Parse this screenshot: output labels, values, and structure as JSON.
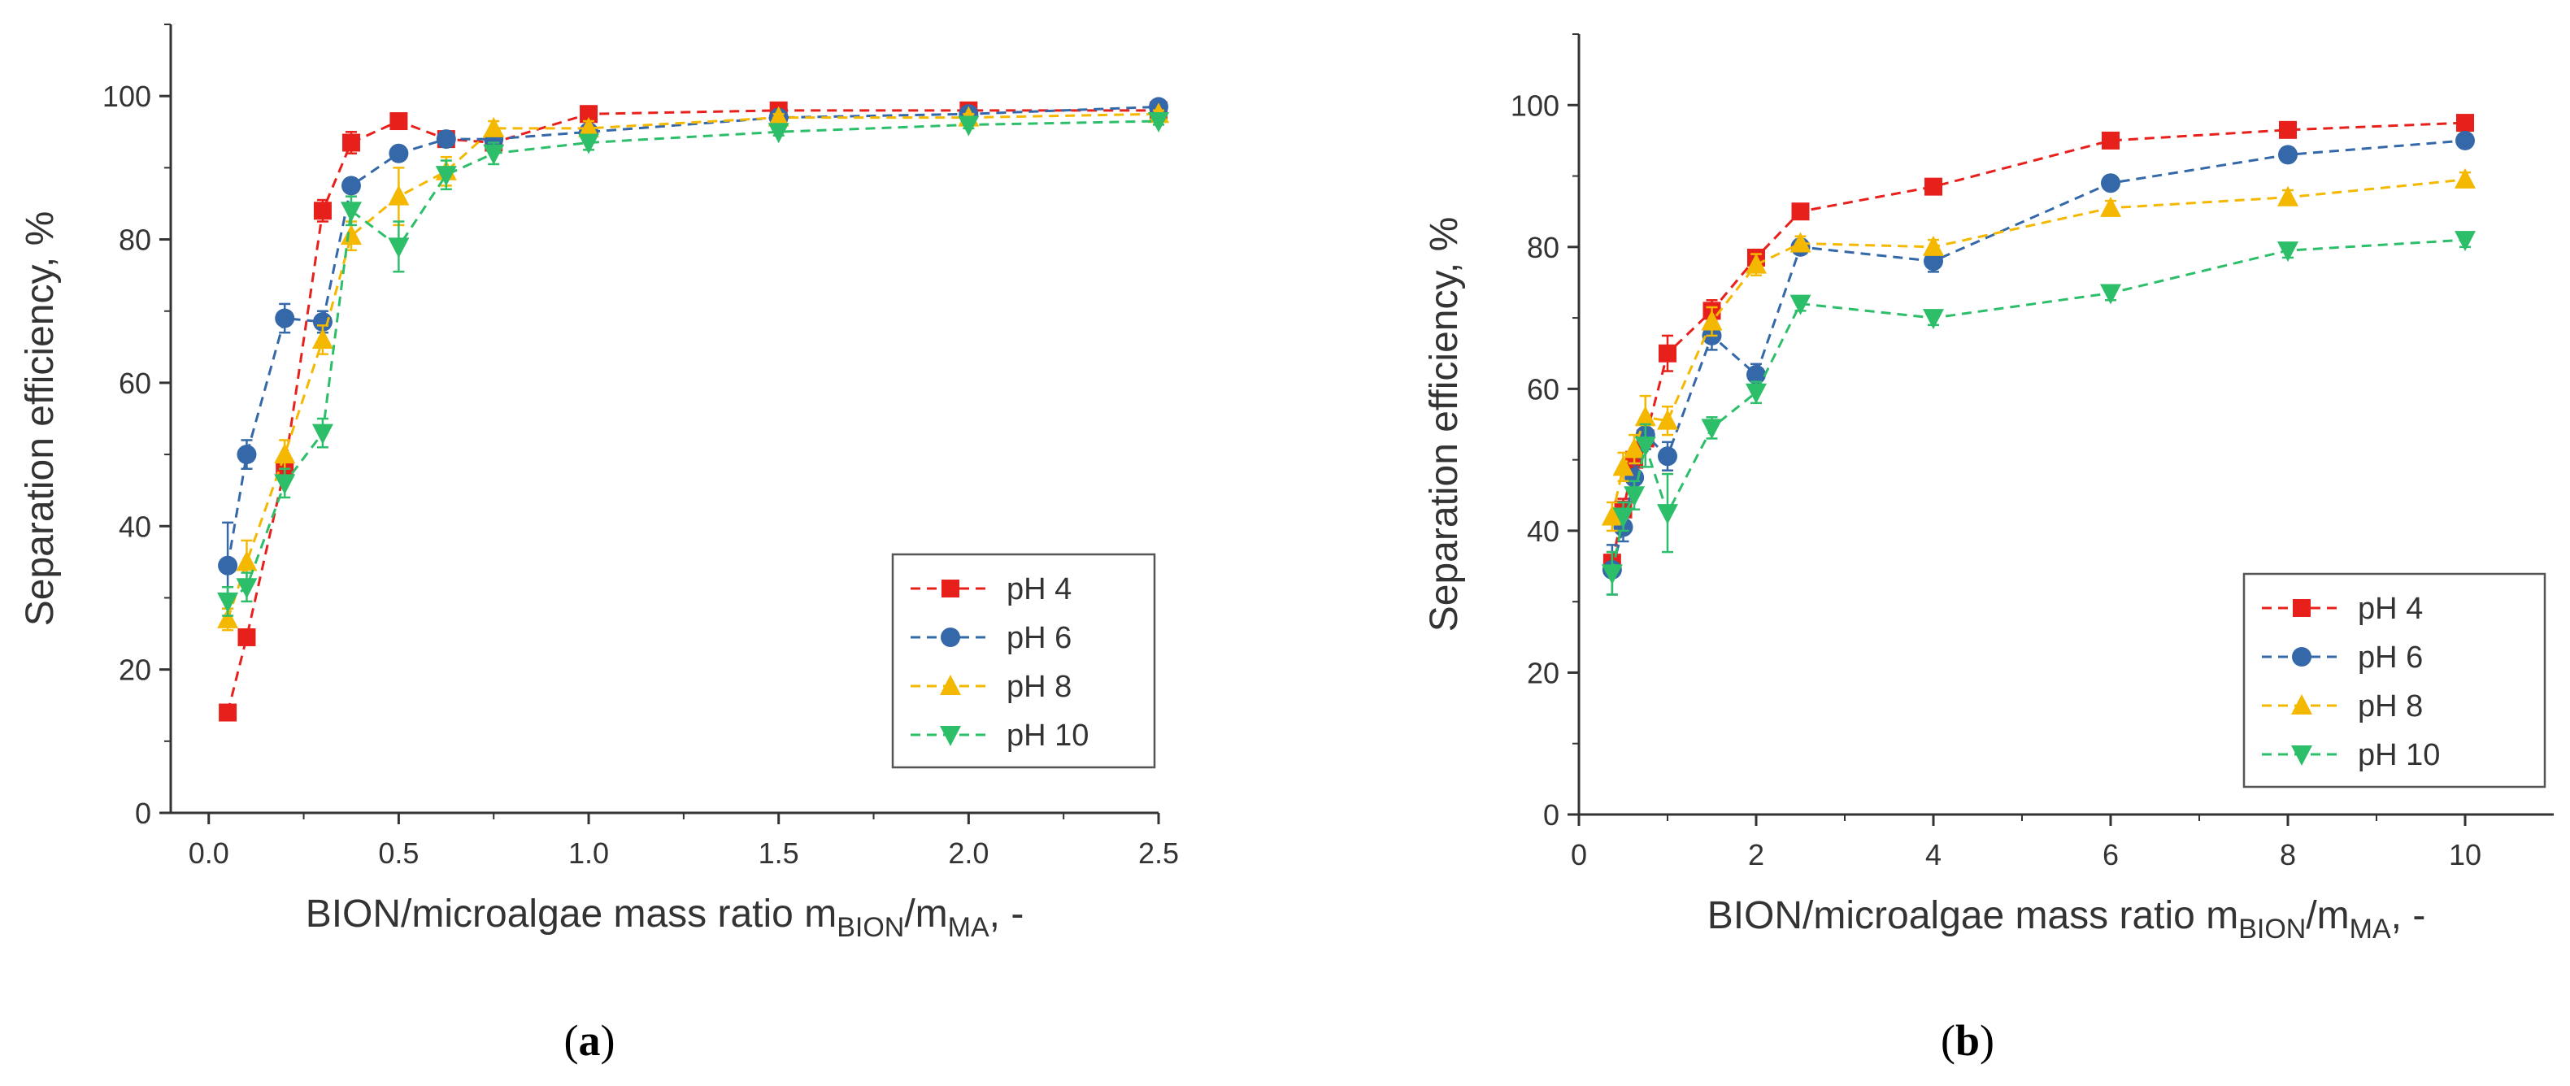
{
  "figure": {
    "captions": [
      {
        "open": "(",
        "letter": "a",
        "close": ")"
      },
      {
        "open": "(",
        "letter": "b",
        "close": ")"
      }
    ]
  },
  "chart_data": [
    {
      "type": "line",
      "style": "dashed line with markers and error bars",
      "ylabel": "Separation efficiency, %",
      "xlabel": {
        "main": "BION/microalgae mass ratio m",
        "sub1": "BION",
        "mid": "/m",
        "sub2": "MA",
        "tail": ", -"
      },
      "xlim": [
        -0.1,
        2.5
      ],
      "ylim": [
        0,
        110
      ],
      "xticks": [
        0.0,
        0.5,
        1.0,
        1.5,
        2.0,
        2.5
      ],
      "xtick_labels": [
        "0.0",
        "0.5",
        "1.0",
        "1.5",
        "2.0",
        "2.5"
      ],
      "yticks": [
        0,
        20,
        40,
        60,
        80,
        100
      ],
      "ytick_labels": [
        "0",
        "20",
        "40",
        "60",
        "80",
        "100"
      ],
      "legend_position": "bottom-right",
      "series": [
        {
          "name": "pH 4",
          "color": "#e8201c",
          "marker": "square",
          "x": [
            0.05,
            0.1,
            0.2,
            0.3,
            0.375,
            0.5,
            0.625,
            0.75,
            1.0,
            1.5,
            2.0,
            2.5
          ],
          "y": [
            14,
            24.5,
            48,
            84,
            93.5,
            96.5,
            94,
            93.5,
            97.5,
            98,
            98,
            98
          ],
          "err": [
            0.5,
            1,
            1.5,
            1.5,
            1.5,
            1,
            1,
            1,
            0.5,
            0.5,
            0.5,
            0.5
          ]
        },
        {
          "name": "pH 6",
          "color": "#3468a8",
          "marker": "circle",
          "x": [
            0.05,
            0.1,
            0.2,
            0.3,
            0.375,
            0.5,
            0.625,
            0.75,
            1.0,
            1.5,
            2.0,
            2.5
          ],
          "y": [
            34.5,
            50,
            69,
            68.5,
            87.5,
            92,
            94,
            94,
            95,
            97,
            97.5,
            98.5
          ],
          "err": [
            6,
            2,
            2,
            1.5,
            1,
            1,
            1,
            1,
            1,
            0.5,
            0.5,
            0.5
          ]
        },
        {
          "name": "pH 8",
          "color": "#f5b800",
          "marker": "triangle-up",
          "x": [
            0.05,
            0.1,
            0.2,
            0.3,
            0.375,
            0.5,
            0.625,
            0.75,
            1.0,
            1.5,
            2.0,
            2.5
          ],
          "y": [
            27,
            35,
            50,
            66,
            80.5,
            86,
            89.5,
            95.5,
            95.5,
            97,
            97,
            97.5
          ],
          "err": [
            1.5,
            3,
            2,
            2,
            2,
            4,
            2,
            1,
            1,
            0.5,
            0.5,
            0.5
          ]
        },
        {
          "name": "pH 10",
          "color": "#2dbe6a",
          "marker": "triangle-down",
          "x": [
            0.05,
            0.1,
            0.2,
            0.3,
            0.375,
            0.5,
            0.625,
            0.75,
            1.0,
            1.5,
            2.0,
            2.5
          ],
          "y": [
            29.5,
            31.5,
            46,
            53,
            84,
            79,
            89,
            92,
            93.5,
            95,
            96,
            96.5
          ],
          "err": [
            2,
            2,
            2,
            2,
            2,
            3.5,
            2,
            1.5,
            1,
            0.5,
            0.5,
            0.5
          ]
        }
      ]
    },
    {
      "type": "line",
      "style": "dashed line with markers and error bars",
      "ylabel": "Separation efficiency, %",
      "xlabel": {
        "main": "BION/microalgae mass ratio m",
        "sub1": "BION",
        "mid": "/m",
        "sub2": "MA",
        "tail": ", -"
      },
      "xlim": [
        0,
        11
      ],
      "ylim": [
        0,
        110
      ],
      "xticks": [
        0,
        2,
        4,
        6,
        8,
        10
      ],
      "xtick_labels": [
        "0",
        "2",
        "4",
        "6",
        "8",
        "10"
      ],
      "yticks": [
        0,
        20,
        40,
        60,
        80,
        100
      ],
      "ytick_labels": [
        "0",
        "20",
        "40",
        "60",
        "80",
        "100"
      ],
      "legend_position": "bottom-right",
      "series": [
        {
          "name": "pH 4",
          "color": "#e8201c",
          "marker": "square",
          "x": [
            0.375,
            0.5,
            0.625,
            0.75,
            1,
            1.5,
            2,
            2.5,
            4,
            6,
            8,
            10
          ],
          "y": [
            35.5,
            43,
            50,
            53,
            65,
            71,
            78.5,
            85,
            88.5,
            95,
            96.5,
            97.5
          ],
          "err": [
            1.5,
            1.5,
            1.5,
            1.5,
            2.5,
            1.5,
            1,
            1,
            1,
            0.5,
            0.5,
            0.5
          ]
        },
        {
          "name": "pH 6",
          "color": "#3468a8",
          "marker": "circle",
          "x": [
            0.375,
            0.5,
            0.625,
            0.75,
            1,
            1.5,
            2,
            2.5,
            4,
            6,
            8,
            10
          ],
          "y": [
            34.5,
            40.5,
            47.5,
            53.5,
            50.5,
            67.5,
            62,
            80,
            78,
            89,
            93,
            95
          ],
          "err": [
            3.5,
            2,
            2,
            2,
            2,
            2,
            1.5,
            1,
            1.5,
            1,
            1,
            0.5
          ]
        },
        {
          "name": "pH 8",
          "color": "#f5b800",
          "marker": "triangle-up",
          "x": [
            0.375,
            0.5,
            0.625,
            0.75,
            1,
            1.5,
            2,
            2.5,
            4,
            6,
            8,
            10
          ],
          "y": [
            42,
            49,
            51.5,
            56,
            55.5,
            69.5,
            77.5,
            80.5,
            80,
            85.5,
            87,
            89.5
          ],
          "err": [
            2,
            2,
            2,
            3,
            2,
            2,
            1.5,
            1,
            1,
            1,
            1,
            1
          ]
        },
        {
          "name": "pH 10",
          "color": "#2dbe6a",
          "marker": "triangle-down",
          "x": [
            0.375,
            0.5,
            0.625,
            0.75,
            1,
            1.5,
            2,
            2.5,
            4,
            6,
            8,
            10
          ],
          "y": [
            34,
            42,
            45,
            52,
            42.5,
            54.5,
            59.5,
            72,
            70,
            73.5,
            79.5,
            81
          ],
          "err": [
            3,
            2,
            2,
            3,
            5.5,
            1.5,
            1.5,
            1,
            1,
            1,
            1,
            1
          ]
        }
      ]
    }
  ]
}
